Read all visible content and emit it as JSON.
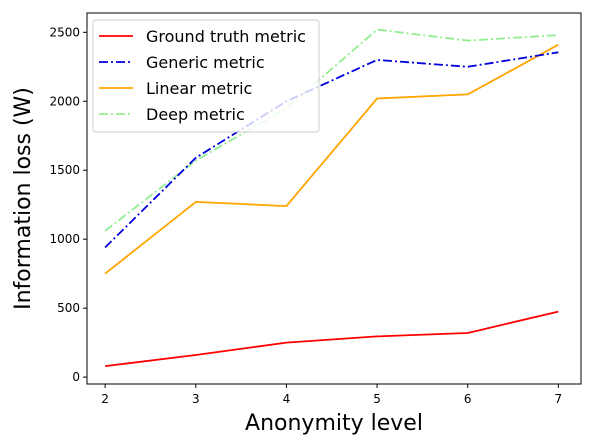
{
  "chart_data": {
    "type": "line",
    "xlabel": "Anonymity level",
    "ylabel": "Information loss (W)",
    "x": [
      2,
      3,
      4,
      5,
      6,
      7
    ],
    "xlim": [
      1.8,
      7.25
    ],
    "ylim": [
      -50,
      2640
    ],
    "xticks": [
      "2",
      "3",
      "4",
      "5",
      "6",
      "7"
    ],
    "yticks": [
      "0",
      "500",
      "1000",
      "1500",
      "2000",
      "2500"
    ],
    "grid": false,
    "legend_position": "top-left",
    "series": [
      {
        "name": "Ground truth metric",
        "color": "#ff0000",
        "style": "solid",
        "values": [
          80,
          160,
          250,
          295,
          320,
          475
        ]
      },
      {
        "name": "Generic metric",
        "color": "#0000dd",
        "style": "dashdot",
        "values": [
          940,
          1590,
          2000,
          2300,
          2250,
          2355
        ]
      },
      {
        "name": "Linear metric",
        "color": "#ffa500",
        "style": "solid",
        "values": [
          750,
          1270,
          1240,
          2020,
          2050,
          2410
        ]
      },
      {
        "name": "Deep metric",
        "color": "#90ee90",
        "style": "dashdot",
        "values": [
          1060,
          1570,
          1950,
          2520,
          2440,
          2480
        ]
      }
    ]
  }
}
